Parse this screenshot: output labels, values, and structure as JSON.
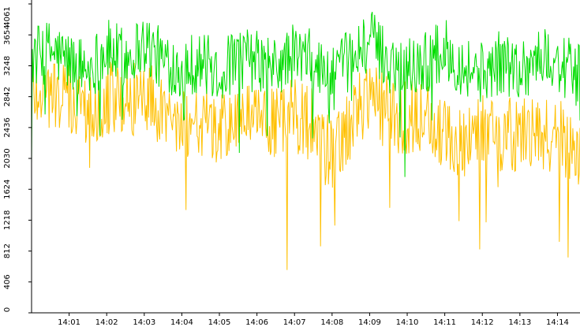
{
  "chart_data": {
    "type": "line",
    "title": "",
    "xlabel": "",
    "ylabel": "",
    "ylim": [
      0,
      4061
    ],
    "y_ticks": [
      0,
      406,
      812,
      1218,
      1624,
      2030,
      2436,
      2842,
      3248,
      3654,
      4061
    ],
    "x_ticks": [
      "14:01",
      "14:02",
      "14:03",
      "14:04",
      "14:05",
      "14:06",
      "14:07",
      "14:08",
      "14:09",
      "14:10",
      "14:11",
      "14:12",
      "14:13",
      "14:14"
    ],
    "xlim_minutes": [
      0.0,
      14.6
    ],
    "x_tick_positions_minutes": [
      1,
      2,
      3,
      4,
      5,
      6,
      7,
      8,
      9,
      10,
      11,
      12,
      13,
      14
    ],
    "grid": false,
    "legend": "none",
    "series": [
      {
        "color": "#00dd00",
        "anchors": [
          [
            0.0,
            3350
          ],
          [
            0.5,
            3450
          ],
          [
            1.0,
            3300
          ],
          [
            1.5,
            3200
          ],
          [
            2.0,
            3450
          ],
          [
            2.5,
            3350
          ],
          [
            3.0,
            3550
          ],
          [
            3.5,
            3300
          ],
          [
            4.0,
            3250
          ],
          [
            4.5,
            3300
          ],
          [
            5.0,
            3150
          ],
          [
            5.5,
            3350
          ],
          [
            6.0,
            3300
          ],
          [
            6.5,
            3200
          ],
          [
            7.0,
            3400
          ],
          [
            7.5,
            3300
          ],
          [
            8.0,
            3050
          ],
          [
            8.5,
            3350
          ],
          [
            9.0,
            3600
          ],
          [
            9.5,
            3300
          ],
          [
            10.0,
            3250
          ],
          [
            10.5,
            3300
          ],
          [
            11.0,
            3450
          ],
          [
            11.5,
            3250
          ],
          [
            12.0,
            3150
          ],
          [
            12.5,
            3300
          ],
          [
            13.0,
            3200
          ],
          [
            13.5,
            3350
          ],
          [
            14.0,
            3300
          ],
          [
            14.6,
            3100
          ]
        ],
        "range": [
          1200,
          4061
        ]
      },
      {
        "color": "#ffc000",
        "anchors": [
          [
            0.0,
            2950
          ],
          [
            0.5,
            2900
          ],
          [
            1.0,
            2800
          ],
          [
            1.5,
            2650
          ],
          [
            2.0,
            2850
          ],
          [
            2.5,
            2750
          ],
          [
            3.0,
            2900
          ],
          [
            3.5,
            2650
          ],
          [
            4.0,
            2500
          ],
          [
            4.5,
            2550
          ],
          [
            5.0,
            2350
          ],
          [
            5.5,
            2600
          ],
          [
            6.0,
            2550
          ],
          [
            6.5,
            2450
          ],
          [
            7.0,
            2600
          ],
          [
            7.5,
            2450
          ],
          [
            8.0,
            2000
          ],
          [
            8.5,
            2500
          ],
          [
            9.0,
            2900
          ],
          [
            9.5,
            2600
          ],
          [
            10.0,
            2550
          ],
          [
            10.5,
            2600
          ],
          [
            11.0,
            2300
          ],
          [
            11.5,
            2250
          ],
          [
            12.0,
            2450
          ],
          [
            12.5,
            2350
          ],
          [
            13.0,
            2350
          ],
          [
            13.5,
            2300
          ],
          [
            14.0,
            2350
          ],
          [
            14.6,
            2150
          ]
        ],
        "range": [
          0,
          3800
        ]
      }
    ]
  }
}
